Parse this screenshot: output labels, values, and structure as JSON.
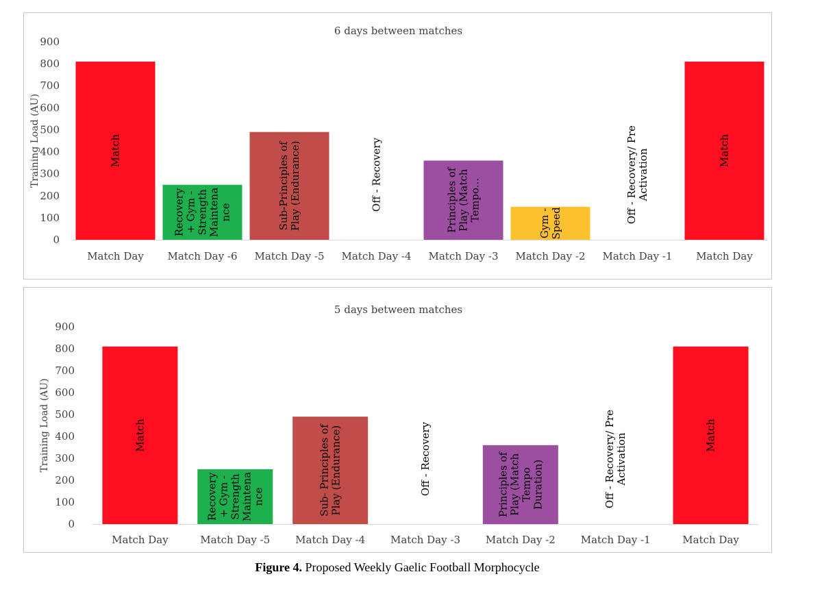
{
  "chart_data": [
    {
      "type": "bar",
      "title": "6 days between matches",
      "ylabel": "Training Load (AU)",
      "ylim": [
        0,
        900
      ],
      "yticks": [
        0,
        100,
        200,
        300,
        400,
        500,
        600,
        700,
        800,
        900
      ],
      "grid": false,
      "categories": [
        "Match Day",
        "Match Day -6",
        "Match Day -5",
        "Match Day -4",
        "Match Day -3",
        "Match Day -2",
        "Match Day -1",
        "Match Day"
      ],
      "values": [
        810,
        250,
        490,
        0,
        360,
        150,
        0,
        810
      ],
      "bar_labels": [
        [
          "Match"
        ],
        [
          "Recovery",
          "+ Gym -",
          "Strength",
          "Maintena",
          "nce"
        ],
        [
          "Sub-Principles of",
          "Play (Endurance)"
        ],
        [
          "Off - Recovery"
        ],
        [
          "Principles of",
          "Play (Match",
          "Tempo..."
        ],
        [
          "Gym -",
          "Speed"
        ],
        [
          "Off - Recovery/ Pre",
          "Activation"
        ],
        [
          "Match"
        ]
      ],
      "colors": [
        "#fe0f1f",
        "#1eb04f",
        "#c04d4a",
        "#ffffff",
        "#9c4fa1",
        "#fdc02e",
        "#ffffff",
        "#fe0f1f"
      ]
    },
    {
      "type": "bar",
      "title": "5 days between matches",
      "ylabel": "Training Load (AU)",
      "ylim": [
        0,
        900
      ],
      "yticks": [
        0,
        100,
        200,
        300,
        400,
        500,
        600,
        700,
        800,
        900
      ],
      "grid": false,
      "categories": [
        "Match Day",
        "Match Day -5",
        "Match Day -4",
        "Match Day -3",
        "Match Day -2",
        "Match Day -1",
        "Match Day"
      ],
      "values": [
        810,
        250,
        490,
        0,
        360,
        0,
        810
      ],
      "bar_labels": [
        [
          "Match"
        ],
        [
          "Recovery",
          "+ Gym -",
          "Strength",
          "Maintena",
          "nce"
        ],
        [
          "Sub- Principles of",
          "Play (Endurance)"
        ],
        [
          "Off - Recovery"
        ],
        [
          "Principles of",
          "Play (Match",
          "Tempo",
          "Duration)"
        ],
        [
          "Off - Recovery/ Pre",
          "Activation"
        ],
        [
          "Match"
        ]
      ],
      "colors": [
        "#fe0f1f",
        "#1eb04f",
        "#c04d4a",
        "#ffffff",
        "#9c4fa1",
        "#ffffff",
        "#fe0f1f"
      ]
    }
  ],
  "caption": {
    "label": "Figure 4.",
    "text": " Proposed Weekly Gaelic Football Morphocycle"
  }
}
